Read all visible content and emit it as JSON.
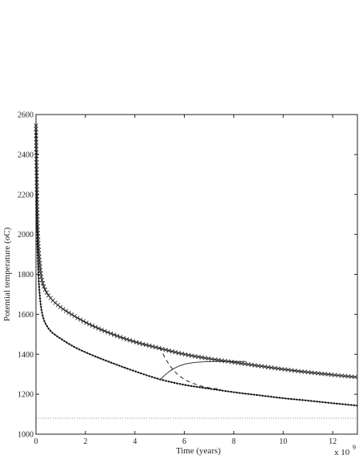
{
  "chart_data": {
    "type": "line",
    "xlabel": "Time (years)",
    "ylabel": "Potential temperature (oC)",
    "x_multiplier": "x 10",
    "x_multiplier_exponent": "9",
    "xlim": [
      0,
      13
    ],
    "ylim": [
      1000,
      2600
    ],
    "xticks": [
      0,
      2,
      4,
      6,
      8,
      10,
      12
    ],
    "yticks": [
      1000,
      1200,
      1400,
      1600,
      1800,
      2000,
      2200,
      2400,
      2600
    ],
    "grid": false,
    "series": [
      {
        "marker": "x",
        "style": "solid",
        "x": [
          0.0,
          0.03,
          0.06,
          0.1,
          0.15,
          0.2,
          0.3,
          0.45,
          0.6,
          0.8,
          1.0,
          1.5,
          2.0,
          3.0,
          4.0,
          5.0,
          6.0,
          7.0,
          8.0,
          9.0,
          10.0,
          11.0,
          12.0,
          13.0
        ],
        "y": [
          2545,
          2300,
          2080,
          1950,
          1860,
          1800,
          1745,
          1705,
          1680,
          1655,
          1635,
          1595,
          1560,
          1505,
          1462,
          1430,
          1400,
          1378,
          1360,
          1342,
          1325,
          1310,
          1297,
          1285
        ]
      },
      {
        "marker": ".",
        "style": "solid",
        "x": [
          0.0,
          0.03,
          0.06,
          0.1,
          0.15,
          0.2,
          0.3,
          0.45,
          0.6,
          0.8,
          1.0,
          1.5,
          2.0,
          3.0,
          4.0,
          5.0,
          6.0,
          7.0,
          8.0,
          9.0,
          10.0,
          11.0,
          12.0,
          13.0
        ],
        "y": [
          2545,
          2200,
          1950,
          1800,
          1700,
          1640,
          1580,
          1540,
          1515,
          1495,
          1478,
          1440,
          1410,
          1360,
          1315,
          1275,
          1247,
          1228,
          1210,
          1195,
          1180,
          1168,
          1155,
          1143
        ]
      },
      {
        "marker": "none",
        "style": "solid",
        "x": [
          5.0,
          5.3,
          5.6,
          6.0,
          6.5,
          7.0,
          7.5,
          8.0,
          8.5
        ],
        "y": [
          1270,
          1305,
          1330,
          1350,
          1360,
          1363,
          1364,
          1364,
          1364
        ]
      },
      {
        "marker": "none",
        "style": "dashed",
        "x": [
          5.0,
          5.3,
          5.6,
          6.0,
          6.5,
          7.0,
          7.5
        ],
        "y": [
          1435,
          1365,
          1315,
          1275,
          1248,
          1232,
          1225
        ]
      },
      {
        "marker": "none",
        "style": "dotted",
        "x": [
          0.0,
          13.0
        ],
        "y": [
          1080,
          1080
        ]
      }
    ]
  }
}
